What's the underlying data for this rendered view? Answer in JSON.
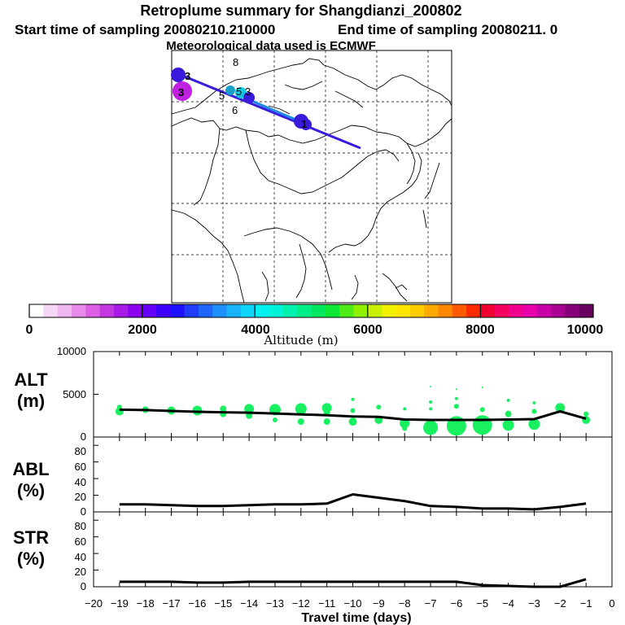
{
  "header": {
    "title": "Retroplume summary for Shangdianzi_200802",
    "start_label": "Start time of sampling 20080210.210000",
    "end_label": "End time of sampling 20080211.     0",
    "met_label": "Meteorological data used is ECMWF"
  },
  "colorbar": {
    "label": "Altitude (m)",
    "tick_labels": [
      "0",
      "2000",
      "4000",
      "6000",
      "8000",
      "10000"
    ],
    "colors": [
      "#ffffff",
      "#f5d6f5",
      "#efb6f0",
      "#e78ae9",
      "#dc5fe5",
      "#c437e0",
      "#a81ae6",
      "#8a00ef",
      "#6600f6",
      "#3c00fb",
      "#1f10fb",
      "#1f3cfb",
      "#1e66fb",
      "#1e8ffb",
      "#18b3fb",
      "#10d5fb",
      "#00f0f0",
      "#00f2d8",
      "#00f0b0",
      "#00ed88",
      "#00e860",
      "#10e838",
      "#50ec18",
      "#90f000",
      "#c8f000",
      "#f0f000",
      "#ffe600",
      "#ffcc00",
      "#ffaa00",
      "#ff8800",
      "#ff5a00",
      "#ff2a00",
      "#f00030",
      "#f40060",
      "#f0008c",
      "#e800a8",
      "#c800a8",
      "#a80090",
      "#880078",
      "#680060"
    ]
  },
  "map": {
    "point_labels": [
      "3",
      "8",
      "3",
      "5",
      "6",
      "5",
      "3",
      "1"
    ],
    "line_colors": {
      "main": "#3a1bdc",
      "segment": "#1e88e8"
    },
    "marker_colors": {
      "purple": "#a818d0",
      "magenta": "#c020e0",
      "blue": "#3a1bdc",
      "cyan": "#10c8e0",
      "teal": "#18a0c8"
    }
  },
  "x_axis": {
    "title": "Travel time (days)",
    "tick_labels": [
      "−20",
      "−19",
      "−18",
      "−17",
      "−16",
      "−15",
      "−14",
      "−13",
      "−12",
      "−11",
      "−10",
      "−9",
      "−8",
      "−7",
      "−6",
      "−5",
      "−4",
      "−3",
      "−2",
      "−1",
      "0"
    ]
  },
  "panels": {
    "alt": {
      "label_top": "ALT",
      "label_bottom": "(m)",
      "tick_labels": [
        "10000",
        "5000",
        "0"
      ]
    },
    "abl": {
      "label_top": "ABL",
      "label_bottom": "(%)",
      "tick_labels": [
        "80",
        "60",
        "40",
        "20",
        "0"
      ]
    },
    "str": {
      "label_top": "STR",
      "label_bottom": "(%)",
      "tick_labels": [
        "80",
        "60",
        "40",
        "20",
        "0"
      ]
    }
  },
  "colors": {
    "line": "#000000",
    "bubble": "#18f060"
  },
  "chart_data": [
    {
      "type": "line",
      "title": "ALT",
      "xlabel": "Travel time (days)",
      "ylabel": "ALT (m)",
      "xlim": [
        -20,
        0
      ],
      "ylim": [
        0,
        10000
      ],
      "x": [
        -19,
        -18,
        -17,
        -16,
        -15,
        -14,
        -13,
        -12,
        -11,
        -10,
        -9,
        -8,
        -7,
        -6,
        -5,
        -4,
        -3,
        -2,
        -1
      ],
      "values": [
        3200,
        3150,
        3050,
        2950,
        2900,
        2850,
        2750,
        2650,
        2550,
        2400,
        2350,
        2050,
        2000,
        2000,
        2000,
        2050,
        2100,
        3000,
        2150
      ],
      "bubbles": [
        {
          "x": -19,
          "y": 3500,
          "s": 3
        },
        {
          "x": -19,
          "y": 3000,
          "s": 5
        },
        {
          "x": -18,
          "y": 3200,
          "s": 4
        },
        {
          "x": -17,
          "y": 3100,
          "s": 5
        },
        {
          "x": -16,
          "y": 3100,
          "s": 6
        },
        {
          "x": -15,
          "y": 3300,
          "s": 4
        },
        {
          "x": -15,
          "y": 2700,
          "s": 4
        },
        {
          "x": -14,
          "y": 3300,
          "s": 6
        },
        {
          "x": -14,
          "y": 2500,
          "s": 4
        },
        {
          "x": -13,
          "y": 3200,
          "s": 7
        },
        {
          "x": -13,
          "y": 2000,
          "s": 3
        },
        {
          "x": -12,
          "y": 3300,
          "s": 7
        },
        {
          "x": -12,
          "y": 1800,
          "s": 4
        },
        {
          "x": -11,
          "y": 3400,
          "s": 6
        },
        {
          "x": -11,
          "y": 2900,
          "s": 4
        },
        {
          "x": -11,
          "y": 1800,
          "s": 4
        },
        {
          "x": -10,
          "y": 4400,
          "s": 2
        },
        {
          "x": -10,
          "y": 3100,
          "s": 3
        },
        {
          "x": -10,
          "y": 1800,
          "s": 5
        },
        {
          "x": -9,
          "y": 3500,
          "s": 3
        },
        {
          "x": -9,
          "y": 2000,
          "s": 5
        },
        {
          "x": -8,
          "y": 3300,
          "s": 2
        },
        {
          "x": -8,
          "y": 1600,
          "s": 6
        },
        {
          "x": -8,
          "y": 1000,
          "s": 3
        },
        {
          "x": -7,
          "y": 5900,
          "s": 1
        },
        {
          "x": -7,
          "y": 4100,
          "s": 2
        },
        {
          "x": -7,
          "y": 3300,
          "s": 2
        },
        {
          "x": -7,
          "y": 1100,
          "s": 9
        },
        {
          "x": -6,
          "y": 5600,
          "s": 1
        },
        {
          "x": -6,
          "y": 4500,
          "s": 2
        },
        {
          "x": -6,
          "y": 3600,
          "s": 3
        },
        {
          "x": -6,
          "y": 1300,
          "s": 12
        },
        {
          "x": -5,
          "y": 5800,
          "s": 1
        },
        {
          "x": -5,
          "y": 3200,
          "s": 3
        },
        {
          "x": -5,
          "y": 1400,
          "s": 12
        },
        {
          "x": -4,
          "y": 4300,
          "s": 2
        },
        {
          "x": -4,
          "y": 2700,
          "s": 4
        },
        {
          "x": -4,
          "y": 1400,
          "s": 7
        },
        {
          "x": -3,
          "y": 4000,
          "s": 2
        },
        {
          "x": -3,
          "y": 3000,
          "s": 3
        },
        {
          "x": -3,
          "y": 1500,
          "s": 7
        },
        {
          "x": -2,
          "y": 3400,
          "s": 6
        },
        {
          "x": -1,
          "y": 2700,
          "s": 3
        },
        {
          "x": -1,
          "y": 2000,
          "s": 5
        }
      ]
    },
    {
      "type": "line",
      "title": "ABL",
      "ylabel": "ABL (%)",
      "xlim": [
        -20,
        0
      ],
      "ylim": [
        0,
        90
      ],
      "x": [
        -19,
        -18,
        -17,
        -16,
        -15,
        -14,
        -13,
        -12,
        -11,
        -10,
        -9,
        -8,
        -7,
        -6,
        -5,
        -4,
        -3,
        -2,
        -1
      ],
      "values": [
        9,
        9,
        8,
        7,
        7,
        8,
        9,
        9,
        10,
        21,
        17,
        13,
        7,
        6,
        4,
        4,
        3,
        6,
        10
      ]
    },
    {
      "type": "line",
      "title": "STR",
      "ylabel": "STR (%)",
      "xlim": [
        -20,
        0
      ],
      "ylim": [
        0,
        90
      ],
      "x": [
        -19,
        -18,
        -17,
        -16,
        -15,
        -14,
        -13,
        -12,
        -11,
        -10,
        -9,
        -8,
        -7,
        -6,
        -5,
        -4,
        -3,
        -2,
        -1
      ],
      "values": [
        6,
        6,
        6,
        5,
        5,
        6,
        6,
        6,
        6,
        6,
        6,
        6,
        6,
        6,
        2,
        1,
        0,
        0,
        9
      ]
    }
  ]
}
